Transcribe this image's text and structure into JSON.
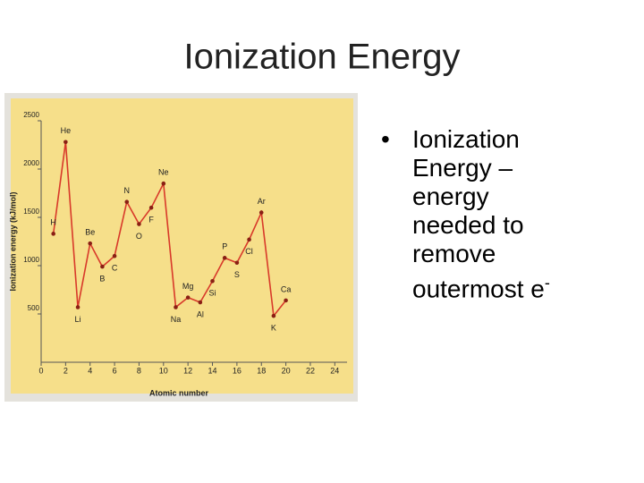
{
  "slide": {
    "title": "Ionization Energy",
    "bullet": {
      "text": "Ionization Energy – energy needed to remove outermost e",
      "sup": "-"
    }
  },
  "chart_data": {
    "type": "line",
    "x_label": "Atomic number",
    "y_label": "Ionization energy (kJ/mol)",
    "x": [
      1,
      2,
      3,
      4,
      5,
      6,
      7,
      8,
      9,
      10,
      11,
      12,
      13,
      14,
      15,
      16,
      17,
      18,
      19,
      20
    ],
    "point_labels": [
      "H",
      "He",
      "Li",
      "Be",
      "B",
      "C",
      "N",
      "O",
      "F",
      "Ne",
      "Na",
      "Mg",
      "Al",
      "Si",
      "P",
      "S",
      "Cl",
      "Ar",
      "K",
      "Ca"
    ],
    "values": [
      1330,
      2280,
      570,
      1230,
      990,
      1100,
      1660,
      1430,
      1600,
      1850,
      570,
      670,
      620,
      840,
      1080,
      1030,
      1270,
      1550,
      480,
      640
    ],
    "color": "#d8392a",
    "xlim": [
      0,
      25
    ],
    "xticks": [
      0,
      2,
      4,
      6,
      8,
      10,
      12,
      14,
      16,
      18,
      20,
      22,
      24
    ],
    "ylim": [
      0,
      2500
    ],
    "yticks": [
      500,
      1000,
      1500,
      2000,
      2500
    ],
    "grid": false
  }
}
